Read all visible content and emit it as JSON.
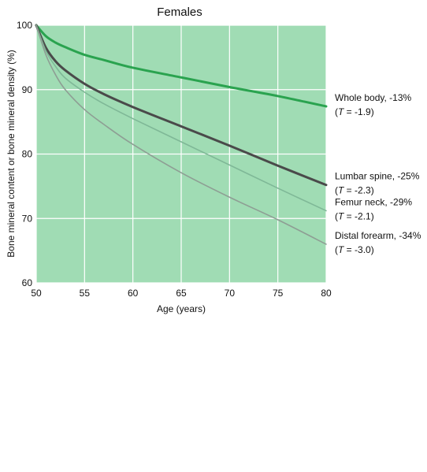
{
  "chart_data": {
    "type": "line",
    "title": "Females",
    "xlabel": "Age (years)",
    "ylabel": "Bone mineral content or bone mineral density (%)",
    "xlim": [
      50,
      80
    ],
    "ylim": [
      60,
      100
    ],
    "xticks": [
      50,
      55,
      60,
      65,
      70,
      75,
      80
    ],
    "yticks": [
      60,
      70,
      80,
      90,
      100
    ],
    "grid": true,
    "background_color": "#a0dcb4",
    "grid_color": "#ffffff",
    "series": [
      {
        "name": "Whole body, -13%",
        "tscore_label": "T",
        "tscore_value": " = -1.9)",
        "color": "#2aa34f",
        "x": [
          50,
          51,
          52,
          53,
          55,
          57,
          60,
          65,
          70,
          75,
          80
        ],
        "y": [
          100,
          98.3,
          97.3,
          96.6,
          95.4,
          94.6,
          93.4,
          91.9,
          90.4,
          89.0,
          87.4
        ]
      },
      {
        "name": "Lumbar spine, -25%",
        "tscore_label": "T",
        "tscore_value": " = -2.3)",
        "color": "#4a4a4a",
        "x": [
          50,
          51,
          52,
          53,
          55,
          57,
          60,
          65,
          70,
          75,
          80
        ],
        "y": [
          100,
          96.5,
          94.4,
          93.0,
          90.9,
          89.3,
          87.3,
          84.3,
          81.3,
          78.2,
          75.2
        ]
      },
      {
        "name": "Femur neck, -29%",
        "tscore_label": "T",
        "tscore_value": " = -2.1)",
        "color": "#7fb897",
        "x": [
          50,
          51,
          52,
          53,
          55,
          57,
          60,
          65,
          70,
          75,
          80
        ],
        "y": [
          100,
          96.0,
          93.6,
          91.8,
          89.6,
          87.8,
          85.5,
          81.9,
          78.3,
          74.7,
          71.2
        ]
      },
      {
        "name": "Distal forearm, -34%",
        "tscore_label": "T",
        "tscore_value": " = -3.0)",
        "color": "#8e9e94",
        "x": [
          50,
          51,
          52,
          53,
          55,
          57,
          60,
          65,
          70,
          75,
          80
        ],
        "y": [
          100,
          95.4,
          92.3,
          90.0,
          86.9,
          84.6,
          81.5,
          77.1,
          73.3,
          69.8,
          66.0
        ]
      }
    ]
  }
}
